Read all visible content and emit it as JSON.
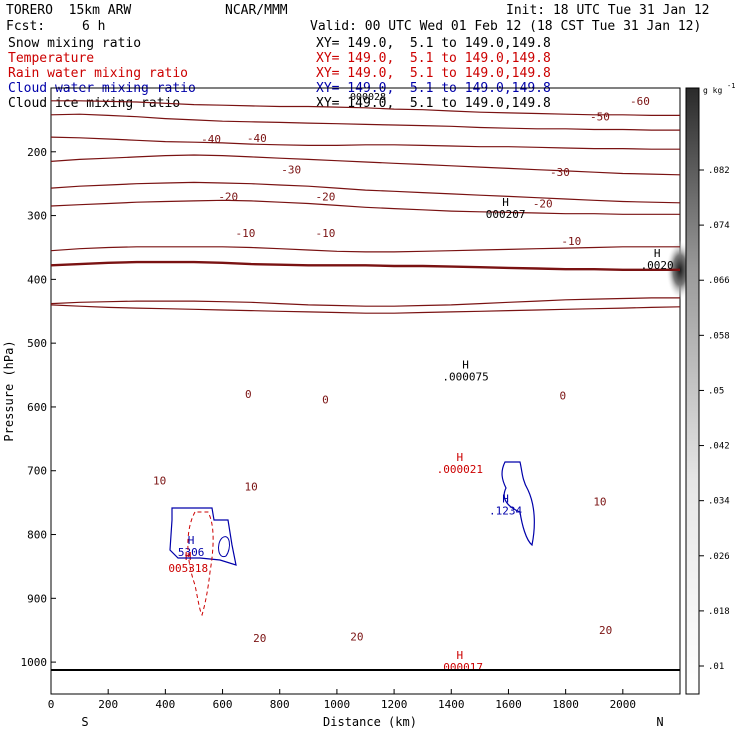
{
  "header": {
    "model": "TORERO  15km ARW",
    "org": "NCAR/MMM",
    "init": "Init: 18 UTC Tue 31 Jan 12",
    "fcst_label": "Fcst:",
    "fcst_value": "6 h",
    "valid": "Valid: 00 UTC Wed 01 Feb 12 (18 CST Tue 31 Jan 12)"
  },
  "fields": [
    {
      "name": "Snow mixing ratio",
      "xy": "XY= 149.0,  5.1 to 149.0,149.8",
      "color": "#000000"
    },
    {
      "name": "Temperature",
      "xy": "XY= 149.0,  5.1 to 149.0,149.8",
      "color": "#cc0000"
    },
    {
      "name": "Rain water mixing ratio",
      "xy": "XY= 149.0,  5.1 to 149.0,149.8",
      "color": "#cc0000"
    },
    {
      "name": "Cloud water mixing ratio",
      "xy": "XY= 149.0,  5.1 to 149.0,149.8",
      "color": "#0000aa"
    },
    {
      "name": "Cloud ice mixing ratio",
      "xy": "XY= 149.0,  5.1 to 149.0,149.8",
      "color": "#000000"
    }
  ],
  "chart_data": {
    "type": "contour",
    "xlabel": "Distance (km)",
    "ylabel": "Pressure (hPa)",
    "xlim": [
      0,
      2200
    ],
    "ylim": [
      1050,
      100
    ],
    "x_ticks": [
      0,
      200,
      400,
      600,
      800,
      1000,
      1200,
      1400,
      1600,
      1800,
      2000
    ],
    "y_ticks": [
      200,
      300,
      400,
      500,
      600,
      700,
      800,
      900,
      1000
    ],
    "x_end_labels": {
      "left": "S",
      "right": "N"
    },
    "temperature_contours": [
      {
        "level": -60,
        "p": [
          120,
          120,
          121,
          122,
          124,
          126,
          127,
          128,
          129,
          129,
          130,
          131,
          133,
          134,
          136,
          138,
          139,
          140,
          141,
          142,
          142,
          143,
          143
        ]
      },
      {
        "level": -50,
        "p": [
          142,
          141,
          143,
          145,
          148,
          150,
          152,
          153,
          154,
          155,
          156,
          157,
          158,
          159,
          160,
          162,
          163,
          164,
          164,
          165,
          165,
          166,
          166
        ]
      },
      {
        "level": -40,
        "p": [
          177,
          178,
          180,
          182,
          184,
          185,
          186,
          188,
          189,
          190,
          190,
          189,
          189,
          190,
          191,
          192,
          192,
          193,
          194,
          195,
          195,
          196,
          196
        ]
      },
      {
        "level": -30,
        "p": [
          215,
          212,
          210,
          208,
          206,
          205,
          206,
          208,
          210,
          212,
          214,
          216,
          218,
          220,
          222,
          224,
          226,
          228,
          230,
          232,
          234,
          235,
          236
        ]
      },
      {
        "level": -20,
        "p": [
          257,
          254,
          252,
          250,
          249,
          248,
          249,
          250,
          252,
          254,
          257,
          260,
          262,
          264,
          266,
          268,
          270,
          272,
          274,
          276,
          278,
          279,
          280
        ]
      },
      {
        "level": -10,
        "p": [
          285,
          283,
          281,
          279,
          278,
          277,
          276,
          277,
          279,
          281,
          284,
          287,
          289,
          291,
          293,
          294,
          295,
          296,
          297,
          297,
          298,
          298,
          298
        ]
      },
      {
        "level": -10,
        "p": [
          355,
          352,
          350,
          349,
          349,
          349,
          349,
          350,
          352,
          354,
          356,
          357,
          357,
          356,
          355,
          354,
          353,
          352,
          351,
          350,
          349,
          349,
          349
        ]
      },
      {
        "level": 0,
        "p": [
          378,
          376,
          374,
          373,
          373,
          373,
          374,
          376,
          377,
          378,
          378,
          378,
          379,
          379,
          380,
          381,
          382,
          383,
          384,
          384,
          385,
          385,
          385
        ]
      },
      {
        "level": 10,
        "p": [
          438,
          436,
          435,
          434,
          434,
          434,
          435,
          436,
          438,
          440,
          441,
          442,
          442,
          441,
          440,
          438,
          436,
          434,
          432,
          431,
          430,
          429,
          429
        ]
      },
      {
        "level": 20,
        "p": [
          440,
          442,
          444,
          445,
          446,
          447,
          448,
          449,
          450,
          451,
          452,
          453,
          453,
          452,
          451,
          450,
          449,
          448,
          447,
          446,
          445,
          444,
          443
        ]
      }
    ],
    "isotherm_labels": [
      {
        "text": "-60",
        "x": 2060,
        "p": 120
      },
      {
        "text": "-50",
        "x": 1920,
        "p": 145
      },
      {
        "text": "-40",
        "x": 560,
        "p": 180
      },
      {
        "text": "-40",
        "x": 720,
        "p": 178
      },
      {
        "text": "-30",
        "x": 840,
        "p": 228
      },
      {
        "text": "-30",
        "x": 1780,
        "p": 232
      },
      {
        "text": "-20",
        "x": 620,
        "p": 270
      },
      {
        "text": "-20",
        "x": 960,
        "p": 270
      },
      {
        "text": "-20",
        "x": 1720,
        "p": 281
      },
      {
        "text": "-10",
        "x": 680,
        "p": 327
      },
      {
        "text": "-10",
        "x": 960,
        "p": 327
      },
      {
        "text": "-10",
        "x": 1820,
        "p": 340
      },
      {
        "text": "0",
        "x": 690,
        "p": 580
      },
      {
        "text": "0",
        "x": 960,
        "p": 588
      },
      {
        "text": "0",
        "x": 1790,
        "p": 582
      },
      {
        "text": "10",
        "x": 380,
        "p": 715
      },
      {
        "text": "10",
        "x": 700,
        "p": 725
      },
      {
        "text": "10",
        "x": 1920,
        "p": 748
      },
      {
        "text": "20",
        "x": 730,
        "p": 962
      },
      {
        "text": "20",
        "x": 1070,
        "p": 960
      },
      {
        "text": "20",
        "x": 1940,
        "p": 950
      }
    ],
    "highs": [
      {
        "label": "H",
        "value": "000207",
        "x": 1590,
        "p": 285,
        "color": "#000000"
      },
      {
        "label": "H",
        "value": ".0020",
        "x": 2120,
        "p": 365,
        "color": "#000000"
      },
      {
        "label": "H",
        "value": ".000075",
        "x": 1450,
        "p": 540,
        "color": "#000000"
      },
      {
        "label": "H",
        "value": ".000021",
        "x": 1430,
        "p": 685,
        "color": "#cc0000"
      },
      {
        "label": "H",
        "value": ".1234",
        "x": 1590,
        "p": 750,
        "color": "#0000aa"
      },
      {
        "label": "H",
        "value": "5306",
        "x": 490,
        "p": 815,
        "color": "#0000aa"
      },
      {
        "label": "H",
        "value": "005318",
        "x": 480,
        "p": 840,
        "color": "#cc0000"
      },
      {
        "label": "H",
        "value": ".000017",
        "x": 1430,
        "p": 995,
        "color": "#cc0000"
      }
    ],
    "overlap_label": "000028",
    "colorbar": {
      "unit": "g kg",
      "unit_sup": "-1",
      "ticks": [
        ".082",
        ".074",
        ".066",
        ".058",
        ".05",
        ".042",
        ".034",
        ".026",
        ".018",
        ".01"
      ]
    }
  }
}
